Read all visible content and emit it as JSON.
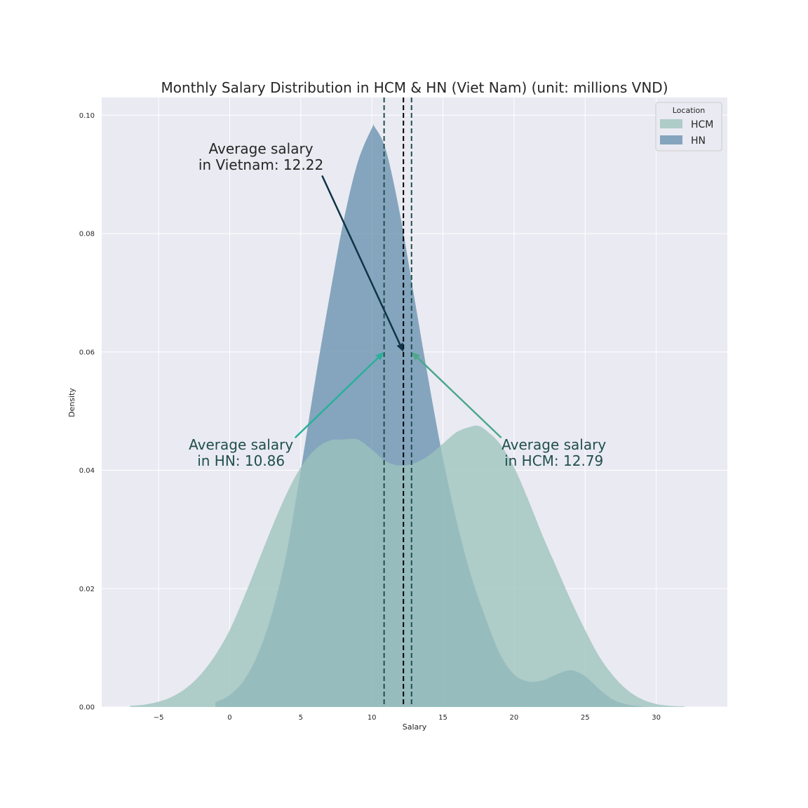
{
  "chart_data": {
    "type": "area",
    "title": "Monthly Salary Distribution in HCM & HN (Viet Nam) (unit: millions VND)",
    "xlabel": "Salary",
    "ylabel": "Density",
    "xlim": [
      -9,
      35
    ],
    "ylim": [
      0,
      0.103
    ],
    "x_ticks": [
      -5,
      0,
      5,
      10,
      15,
      20,
      25,
      30
    ],
    "x_tick_labels": [
      "−5",
      "0",
      "5",
      "10",
      "15",
      "20",
      "25",
      "30"
    ],
    "y_ticks": [
      0.0,
      0.02,
      0.04,
      0.06,
      0.08,
      0.1
    ],
    "y_tick_labels": [
      "0.00",
      "0.02",
      "0.04",
      "0.06",
      "0.08",
      "0.10"
    ],
    "grid": true,
    "legend": {
      "title": "Location",
      "position": "top-right"
    },
    "series": [
      {
        "name": "HCM",
        "color": "#9cc3bd",
        "x": [
          -7,
          -6,
          -5,
          -4,
          -3,
          -2,
          -1,
          0,
          1,
          2,
          3,
          4,
          5,
          6,
          7,
          8,
          9,
          10,
          11,
          12,
          13,
          14,
          15,
          16,
          17,
          17.5,
          18,
          19,
          20,
          21,
          22,
          23,
          24,
          25,
          26,
          27,
          28,
          29,
          30,
          31,
          32
        ],
        "y": [
          0.0002,
          0.0004,
          0.0009,
          0.0018,
          0.0033,
          0.0056,
          0.0088,
          0.013,
          0.0185,
          0.0245,
          0.0305,
          0.036,
          0.0405,
          0.0435,
          0.045,
          0.0452,
          0.0452,
          0.0435,
          0.0415,
          0.0408,
          0.0412,
          0.0425,
          0.0445,
          0.0465,
          0.0474,
          0.0475,
          0.0468,
          0.0445,
          0.0405,
          0.035,
          0.029,
          0.0235,
          0.018,
          0.013,
          0.0085,
          0.0052,
          0.0028,
          0.0013,
          0.0005,
          0.0002,
          0.0001
        ]
      },
      {
        "name": "HN",
        "color": "#5d8aa8",
        "x": [
          -1,
          0,
          1,
          2,
          3,
          4,
          5,
          6,
          7,
          8,
          9,
          10,
          10.2,
          11,
          12,
          13,
          14,
          15,
          16,
          17,
          18,
          19,
          20,
          21,
          22,
          23,
          24,
          25,
          26,
          27,
          28,
          29
        ],
        "y": [
          0.0008,
          0.002,
          0.0045,
          0.009,
          0.016,
          0.026,
          0.04,
          0.055,
          0.069,
          0.082,
          0.092,
          0.0978,
          0.098,
          0.094,
          0.083,
          0.069,
          0.055,
          0.042,
          0.031,
          0.022,
          0.015,
          0.009,
          0.0055,
          0.0043,
          0.0045,
          0.0055,
          0.0062,
          0.0052,
          0.003,
          0.0012,
          0.0004,
          0.0001
        ]
      }
    ],
    "reference_lines": [
      {
        "name": "HN mean",
        "x": 10.86,
        "color": "#1f4f4b",
        "style": "dashed"
      },
      {
        "name": "Vietnam mean",
        "x": 12.22,
        "color": "#000000",
        "style": "dashed"
      },
      {
        "name": "HCM mean",
        "x": 12.79,
        "color": "#1f4f4b",
        "style": "dashed"
      }
    ],
    "annotations": [
      {
        "name": "vietnam",
        "lines": [
          "Average salary",
          "in Vietnam: 12.22"
        ],
        "color": "#262626",
        "arrow_color": "#0f3347",
        "text_x": 2.2,
        "text_y": 0.0935,
        "from_x": 6.5,
        "from_y": 0.0898,
        "to_x": 12.22,
        "to_y": 0.06
      },
      {
        "name": "hn",
        "lines": [
          "Average salary",
          "in HN: 10.86"
        ],
        "color": "#1f4f4b",
        "arrow_color": "#2ab09a",
        "text_x": 0.8,
        "text_y": 0.0435,
        "from_x": 4.6,
        "from_y": 0.0455,
        "to_x": 10.86,
        "to_y": 0.06
      },
      {
        "name": "hcm",
        "lines": [
          "Average salary",
          "in HCM: 12.79"
        ],
        "color": "#1f4f4b",
        "arrow_color": "#4aa88a",
        "text_x": 22.8,
        "text_y": 0.0435,
        "from_x": 19.1,
        "from_y": 0.0455,
        "to_x": 12.79,
        "to_y": 0.06
      }
    ]
  }
}
